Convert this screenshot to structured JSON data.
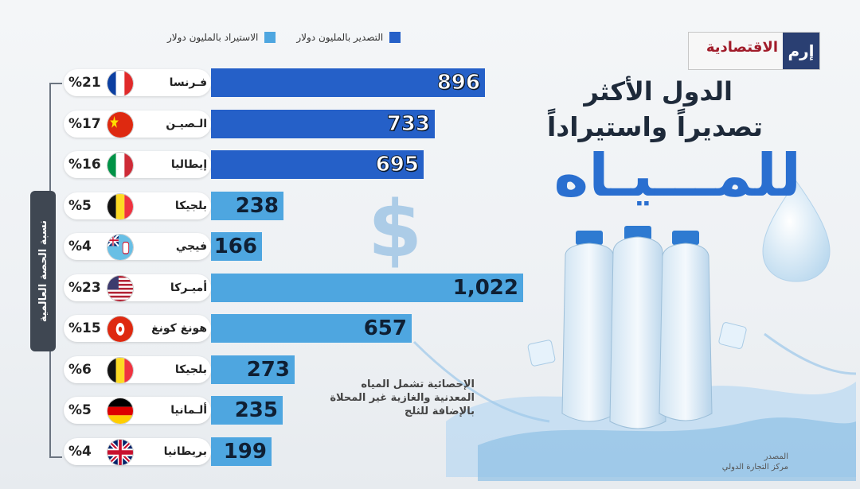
{
  "logo": {
    "mark": "إرم",
    "text": "الاقتصادية"
  },
  "title": {
    "line1": "الدول الأكثر",
    "line2": "تصديراً واستيراداً",
    "line3": "للمـــيـاه"
  },
  "legend": {
    "export": "التصدير بالمليون دولار",
    "import": "الاستيراد بالمليون دولار"
  },
  "side_label": "نسبة الحصة العالمية",
  "note": "الإحصائية تشمل المياه المعدنية والغازية غير المحلاة بالإضافة للثلج",
  "source": {
    "label": "المصدر",
    "value": "مركز التجارة الدولي"
  },
  "colors": {
    "export": "#2560c8",
    "import": "#4ea6e0",
    "title_accent": "#2a6fd0"
  },
  "chart_data": {
    "type": "bar",
    "orientation": "horizontal",
    "series": [
      {
        "name": "التصدير بالمليون دولار",
        "type": "export"
      },
      {
        "name": "الاستيراد بالمليون دولار",
        "type": "import"
      }
    ],
    "rows": [
      {
        "country": "فـرنسا",
        "flag": "france-flag-icon",
        "share": "%21",
        "value": 896,
        "label": "896",
        "series": "export"
      },
      {
        "country": "الـصيـن",
        "flag": "china-flag-icon",
        "share": "%17",
        "value": 733,
        "label": "733",
        "series": "export"
      },
      {
        "country": "إيطاليا",
        "flag": "italy-flag-icon",
        "share": "%16",
        "value": 695,
        "label": "695",
        "series": "export"
      },
      {
        "country": "بلجيكا",
        "flag": "belgium-flag-icon",
        "share": "%5",
        "value": 238,
        "label": "238",
        "series": "import"
      },
      {
        "country": "فيجي",
        "flag": "fiji-flag-icon",
        "share": "%4",
        "value": 166,
        "label": "166",
        "series": "import"
      },
      {
        "country": "أميـركا",
        "flag": "usa-flag-icon",
        "share": "%23",
        "value": 1022,
        "label": "1,022",
        "series": "import"
      },
      {
        "country": "هونغ كونغ",
        "flag": "hongkong-flag-icon",
        "share": "%15",
        "value": 657,
        "label": "657",
        "series": "import"
      },
      {
        "country": "بلجيكا",
        "flag": "belgium-flag-icon",
        "share": "%6",
        "value": 273,
        "label": "273",
        "series": "import"
      },
      {
        "country": "ألـمانيا",
        "flag": "germany-flag-icon",
        "share": "%5",
        "value": 235,
        "label": "235",
        "series": "import"
      },
      {
        "country": "بريطانيا",
        "flag": "uk-flag-icon",
        "share": "%4",
        "value": 199,
        "label": "199",
        "series": "import"
      }
    ]
  }
}
